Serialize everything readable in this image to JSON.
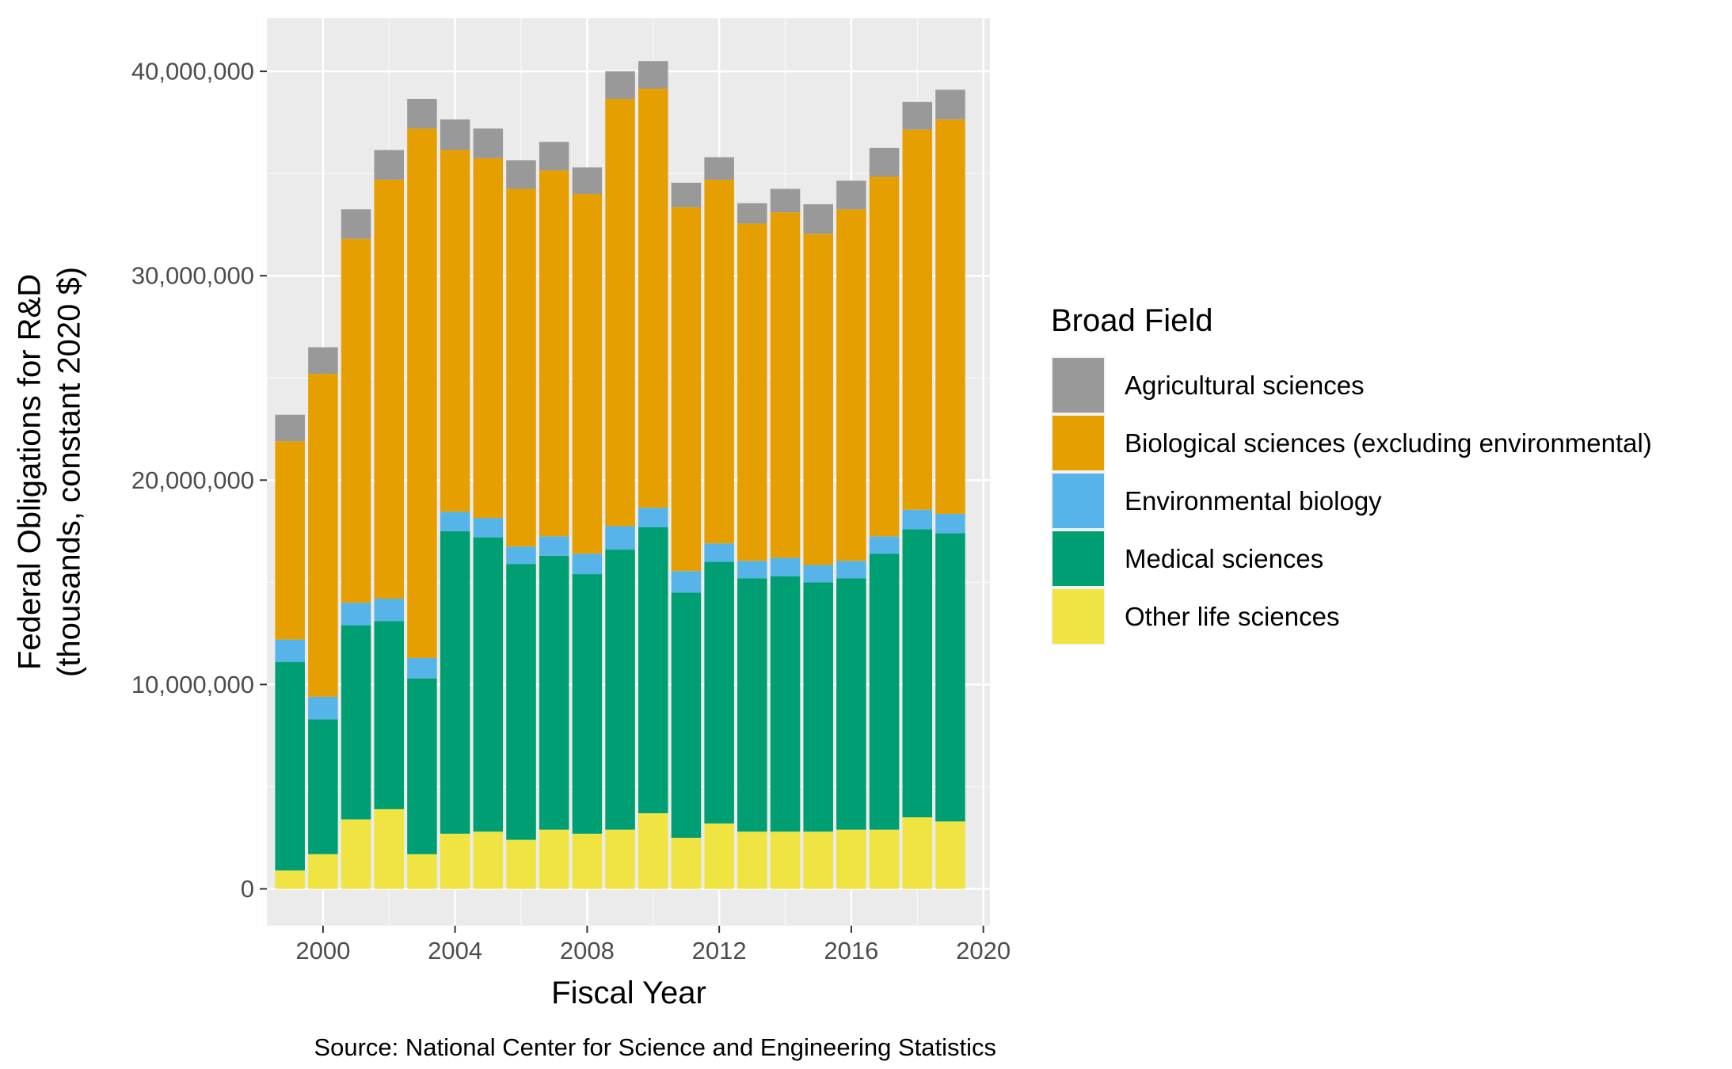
{
  "chart_data": {
    "type": "bar",
    "stacked": true,
    "xlabel": "Fiscal Year",
    "ylabel": "Federal Obligations for R&D",
    "ylabel_line2": "(thousands, constant 2020 $)",
    "caption": "Source: National Center for Science and Engineering Statistics",
    "legend_title": "Broad Field",
    "legend_position": "right",
    "grid": true,
    "xlim": [
      1998.3,
      2020.2
    ],
    "ylim": [
      -1800000,
      42600000
    ],
    "x_ticks": [
      2000,
      2004,
      2008,
      2012,
      2016,
      2020
    ],
    "x_tick_labels": [
      "2000",
      "2004",
      "2008",
      "2012",
      "2016",
      "2020"
    ],
    "y_ticks": [
      0,
      10000000,
      20000000,
      30000000,
      40000000
    ],
    "y_tick_labels": [
      "0",
      "10,000,000",
      "20,000,000",
      "30,000,000",
      "40,000,000"
    ],
    "x": [
      1999,
      2000,
      2001,
      2002,
      2003,
      2004,
      2005,
      2006,
      2007,
      2008,
      2009,
      2010,
      2011,
      2012,
      2013,
      2014,
      2015,
      2016,
      2017,
      2018,
      2019
    ],
    "stack_order": [
      "Other life sciences",
      "Medical sciences",
      "Environmental biology",
      "Biological sciences (excluding environmental)",
      "Agricultural sciences"
    ],
    "series": [
      {
        "name": "Agricultural sciences",
        "color": "#999999",
        "values": [
          1300000,
          1300000,
          1450000,
          1450000,
          1450000,
          1500000,
          1450000,
          1400000,
          1400000,
          1300000,
          1350000,
          1350000,
          1200000,
          1100000,
          1000000,
          1150000,
          1450000,
          1400000,
          1400000,
          1350000,
          1450000
        ]
      },
      {
        "name": "Biological sciences (excluding environmental)",
        "color": "#E69F00",
        "values": [
          9700000,
          15800000,
          17800000,
          20500000,
          25900000,
          17700000,
          17600000,
          17500000,
          17900000,
          17600000,
          20900000,
          20500000,
          17800000,
          17800000,
          16500000,
          16900000,
          16200000,
          17200000,
          17600000,
          18600000,
          19300000
        ]
      },
      {
        "name": "Environmental biology",
        "color": "#56B4E9",
        "values": [
          1100000,
          1100000,
          1100000,
          1100000,
          1000000,
          950000,
          950000,
          850000,
          950000,
          1000000,
          1150000,
          950000,
          1050000,
          900000,
          850000,
          900000,
          850000,
          850000,
          850000,
          950000,
          950000
        ]
      },
      {
        "name": "Medical sciences",
        "color": "#009E73",
        "values": [
          10200000,
          6600000,
          9500000,
          9200000,
          8600000,
          14800000,
          14400000,
          13500000,
          13400000,
          12700000,
          13700000,
          14000000,
          12000000,
          12800000,
          12400000,
          12500000,
          12200000,
          12300000,
          13500000,
          14100000,
          14100000
        ]
      },
      {
        "name": "Other life sciences",
        "color": "#F0E442",
        "values": [
          900000,
          1700000,
          3400000,
          3900000,
          1700000,
          2700000,
          2800000,
          2400000,
          2900000,
          2700000,
          2900000,
          3700000,
          2500000,
          3200000,
          2800000,
          2800000,
          2800000,
          2900000,
          2900000,
          3500000,
          3300000
        ]
      }
    ]
  }
}
